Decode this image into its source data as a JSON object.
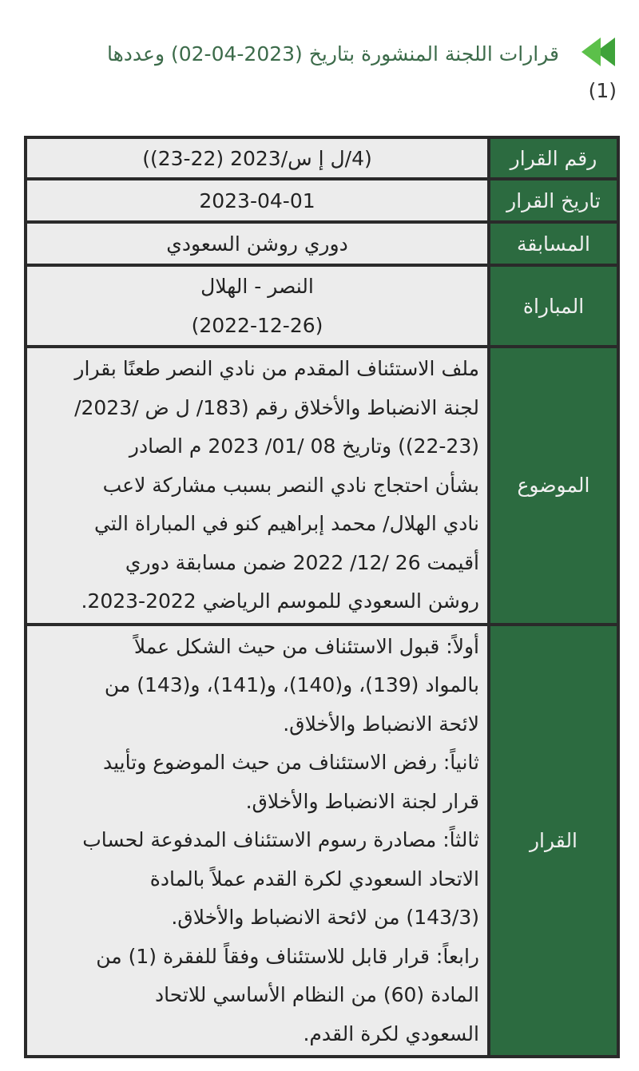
{
  "header": {
    "icon": "double-arrow-left-icon",
    "title": "قرارات اللجنة المنشورة بتاريخ (2023-04-02) وعددها",
    "count": "(1)"
  },
  "colors": {
    "label_bg": "#2c6b40",
    "cell_bg": "#ececec",
    "title": "#3c6b4a"
  },
  "table": {
    "decision_number": {
      "label": "رقم القرار",
      "value": "(4/ل إ س/2023 (22-23))"
    },
    "decision_date": {
      "label": "تاريخ القرار",
      "value": "2023-04-01"
    },
    "competition": {
      "label": "المسابقة",
      "value": "دوري روشن السعودي"
    },
    "match": {
      "label": "المباراة",
      "lines": [
        "النصر - الهلال",
        "(2022-12-26)"
      ]
    },
    "subject": {
      "label": "الموضوع",
      "lines": [
        "ملف الاستئناف المقدم من نادي النصر طعنًا بقرار",
        "لجنة الانضباط والأخلاق رقم (183/ ل ض /2023/",
        "(22-23)) وتاريخ 08 /01/ 2023 م الصادر",
        "بشأن احتجاج نادي النصر بسبب مشاركة لاعب",
        "نادي الهلال/ محمد إبراهيم كنو في المباراة التي",
        "أقيمت 26 /12/ 2022 ضمن مسابقة دوري",
        "روشن السعودي للموسم الرياضي 2022-2023."
      ]
    },
    "decision": {
      "label": "القرار",
      "lines": [
        "أولاً: قبول الاستئناف من حيث الشكل عملاً",
        "بالمواد (139)، و(140)، و(141)، و(143) من",
        "لائحة الانضباط والأخلاق.",
        "ثانياً: رفض الاستئناف من حيث الموضوع وتأييد",
        "قرار لجنة الانضباط والأخلاق.",
        "ثالثاً: مصادرة رسوم الاستئناف المدفوعة لحساب",
        "الاتحاد السعودي لكرة القدم عملاً بالمادة",
        "(143/3) من لائحة الانضباط والأخلاق.",
        "رابعاً: قرار قابل للاستئناف وفقاً للفقرة (1) من",
        "المادة (60) من النظام الأساسي للاتحاد",
        "السعودي لكرة القدم."
      ]
    }
  }
}
